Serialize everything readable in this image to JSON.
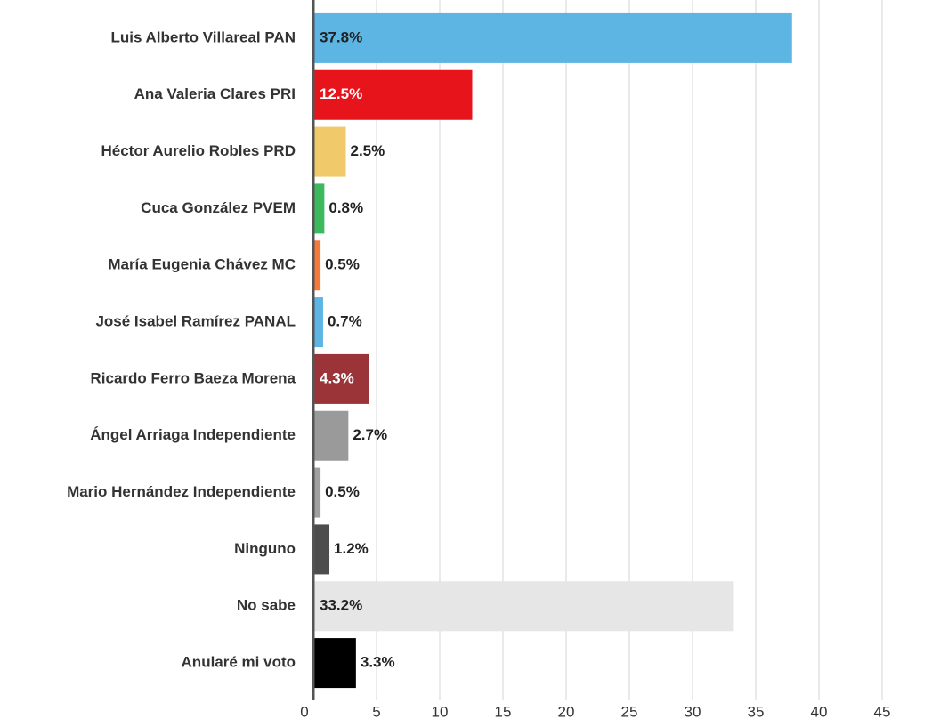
{
  "chart_data": {
    "type": "barh",
    "categories": [
      "Luis Alberto Villareal PAN",
      "Ana Valeria Clares PRI",
      "Héctor Aurelio Robles PRD",
      "Cuca González PVEM",
      "María Eugenia Chávez MC",
      "José Isabel Ramírez PANAL",
      "Ricardo Ferro Baeza Morena",
      "Ángel Arriaga Independiente",
      "Mario Hernández Independiente",
      "Ninguno",
      "No sabe",
      "Anularé mi voto"
    ],
    "values": [
      37.8,
      12.5,
      2.5,
      0.8,
      0.5,
      0.7,
      4.3,
      2.7,
      0.5,
      1.2,
      33.2,
      3.3
    ],
    "value_labels": [
      "37.8%",
      "12.5%",
      "2.5%",
      "0.8%",
      "0.5%",
      "0.7%",
      "4.3%",
      "2.7%",
      "0.5%",
      "1.2%",
      "33.2%",
      "3.3%"
    ],
    "colors": [
      "#5db5e3",
      "#e8141b",
      "#f0c96a",
      "#3cb95d",
      "#f47a3c",
      "#5db5e3",
      "#9b3438",
      "#9a9a9a",
      "#a0a0a0",
      "#4d4d4d",
      "#e6e6e6",
      "#000000"
    ],
    "xlim": [
      0,
      50
    ],
    "xticks": [
      0,
      5,
      10,
      15,
      20,
      25,
      30,
      35,
      40,
      45,
      50
    ],
    "grid": true
  }
}
